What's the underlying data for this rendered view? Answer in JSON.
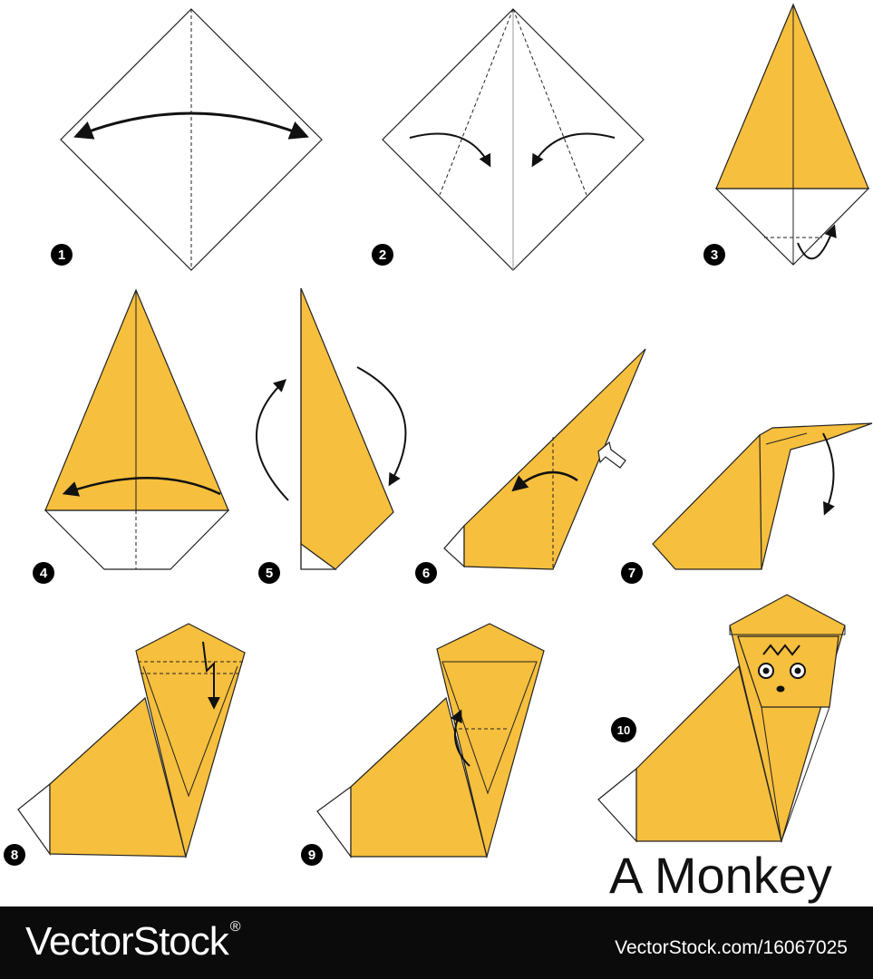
{
  "title": "A Monkey",
  "steps": [
    {
      "label": "1"
    },
    {
      "label": "2"
    },
    {
      "label": "3"
    },
    {
      "label": "4"
    },
    {
      "label": "5"
    },
    {
      "label": "6"
    },
    {
      "label": "7"
    },
    {
      "label": "8"
    },
    {
      "label": "9"
    },
    {
      "label": "10"
    }
  ],
  "footer": {
    "brand": "VectorStock",
    "registered_mark": "®",
    "url": "VectorStock.com/16067025"
  },
  "colors": {
    "paper": "#f6bf3d",
    "line": "#222222",
    "background": "#ffffff",
    "footer": "#0b0b0b"
  }
}
